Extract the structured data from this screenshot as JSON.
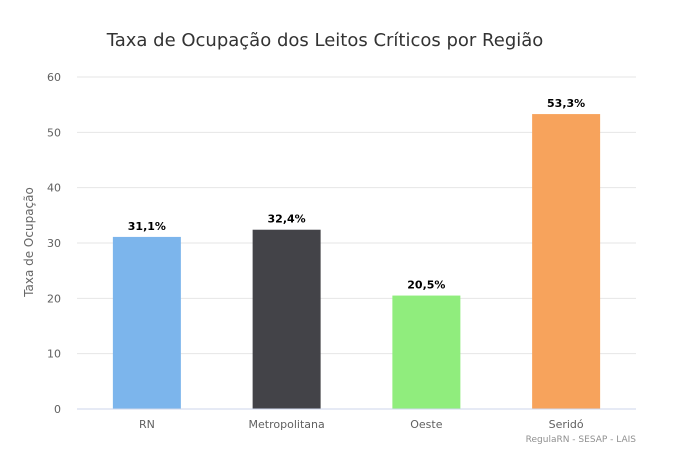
{
  "chart_data": {
    "type": "bar",
    "title": "Taxa de Ocupação dos Leitos Críticos por Região",
    "xlabel": "",
    "ylabel": "Taxa de Ocupação",
    "categories": [
      "RN",
      "Metropolitana",
      "Oeste",
      "Seridó"
    ],
    "values": [
      31.1,
      32.4,
      20.5,
      53.3
    ],
    "data_labels": [
      "31,1%",
      "32,4%",
      "20,5%",
      "53,3%"
    ],
    "colors": [
      "#7cb5ec",
      "#434348",
      "#90ed7d",
      "#f7a35c"
    ],
    "ylim": [
      0,
      60
    ],
    "yticks": [
      0,
      10,
      20,
      30,
      40,
      50,
      60
    ],
    "grid": true,
    "legend": "none"
  },
  "credits": "RegulaRN - SESAP - LAIS"
}
